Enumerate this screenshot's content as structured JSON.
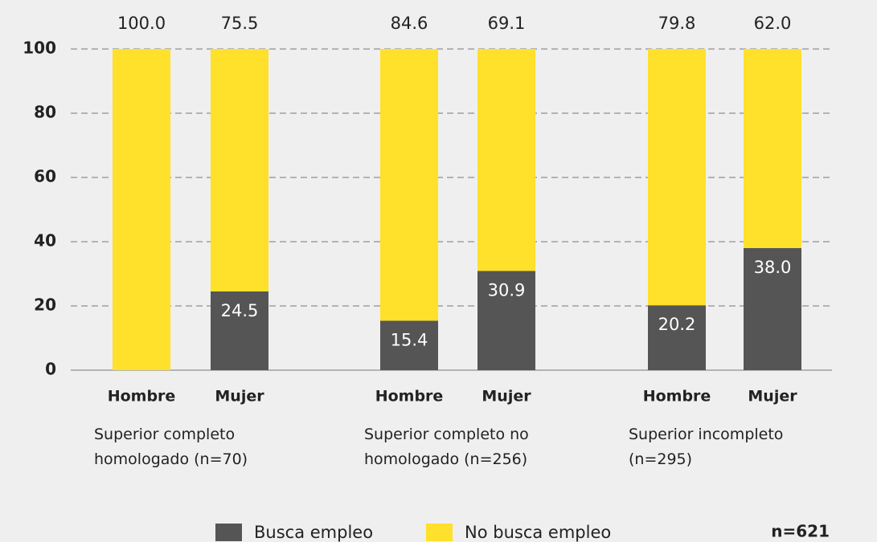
{
  "chart_data": {
    "type": "stacked-bar",
    "categories": [
      "Hombre",
      "Mujer",
      "Hombre",
      "Mujer",
      "Hombre",
      "Mujer"
    ],
    "groups": [
      {
        "label": "Superior completo homologado (n=70)",
        "categories": [
          0,
          1
        ]
      },
      {
        "label": "Superior completo no homologado (n=256)",
        "categories": [
          2,
          3
        ]
      },
      {
        "label": "Superior incompleto (n=295)",
        "categories": [
          4,
          5
        ]
      }
    ],
    "series": [
      {
        "name": "Busca empleo",
        "color": "#555555",
        "values": [
          null,
          24.5,
          15.4,
          30.9,
          20.2,
          38.0
        ],
        "value_labels": [
          null,
          "24.5",
          "15.4",
          "30.9",
          "20.2",
          "38.0"
        ]
      },
      {
        "name": "No busca empleo",
        "color": "#ffe02a",
        "values": [
          100.0,
          75.5,
          84.6,
          69.1,
          79.8,
          62.0
        ],
        "value_labels": [
          "100.0",
          "75.5",
          "84.6",
          "69.1",
          "79.8",
          "62.0"
        ]
      }
    ],
    "ylim": [
      0,
      100
    ],
    "yticks": [
      0,
      20,
      40,
      60,
      80,
      100
    ],
    "grid": true,
    "note": "n=621"
  }
}
